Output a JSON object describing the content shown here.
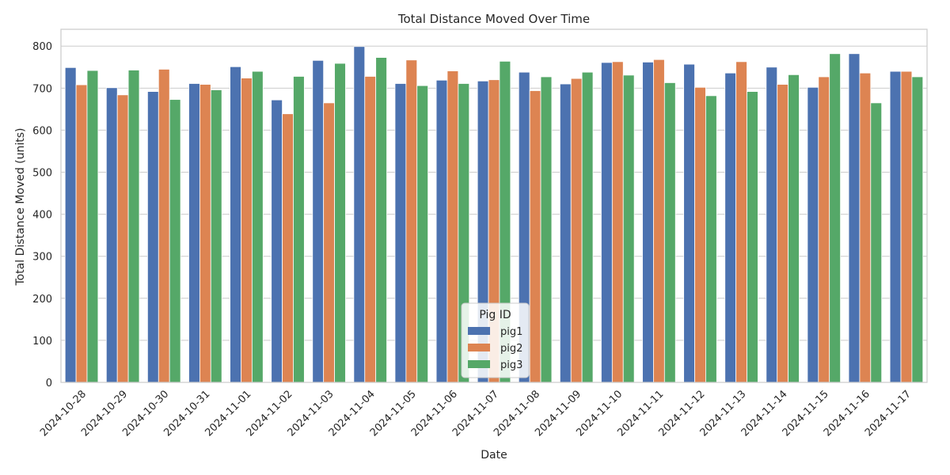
{
  "chart_data": {
    "type": "bar",
    "title": "Total Distance Moved Over Time",
    "xlabel": "Date",
    "ylabel": "Total Distance Moved (units)",
    "ylim": [
      0,
      840
    ],
    "yticks": [
      0,
      100,
      200,
      300,
      400,
      500,
      600,
      700,
      800
    ],
    "grid": true,
    "legend": {
      "title": "Pig ID",
      "placement": "bottom-center"
    },
    "categories": [
      "2024-10-28",
      "2024-10-29",
      "2024-10-30",
      "2024-10-31",
      "2024-11-01",
      "2024-11-02",
      "2024-11-03",
      "2024-11-04",
      "2024-11-05",
      "2024-11-06",
      "2024-11-07",
      "2024-11-08",
      "2024-11-09",
      "2024-11-10",
      "2024-11-11",
      "2024-11-12",
      "2024-11-13",
      "2024-11-14",
      "2024-11-15",
      "2024-11-16",
      "2024-11-17"
    ],
    "series": [
      {
        "name": "pig1",
        "color": "#4c72b0",
        "values": [
          749,
          701,
          692,
          711,
          751,
          672,
          766,
          799,
          711,
          719,
          717,
          738,
          710,
          761,
          762,
          757,
          736,
          750,
          702,
          782,
          740
        ]
      },
      {
        "name": "pig2",
        "color": "#dd8452",
        "values": [
          708,
          684,
          745,
          709,
          724,
          639,
          665,
          728,
          767,
          741,
          720,
          694,
          723,
          763,
          768,
          702,
          763,
          709,
          727,
          736,
          740
        ]
      },
      {
        "name": "pig3",
        "color": "#55a868",
        "values": [
          742,
          743,
          673,
          696,
          740,
          728,
          759,
          773,
          706,
          711,
          764,
          727,
          738,
          731,
          713,
          682,
          692,
          732,
          782,
          665,
          727
        ]
      }
    ]
  }
}
